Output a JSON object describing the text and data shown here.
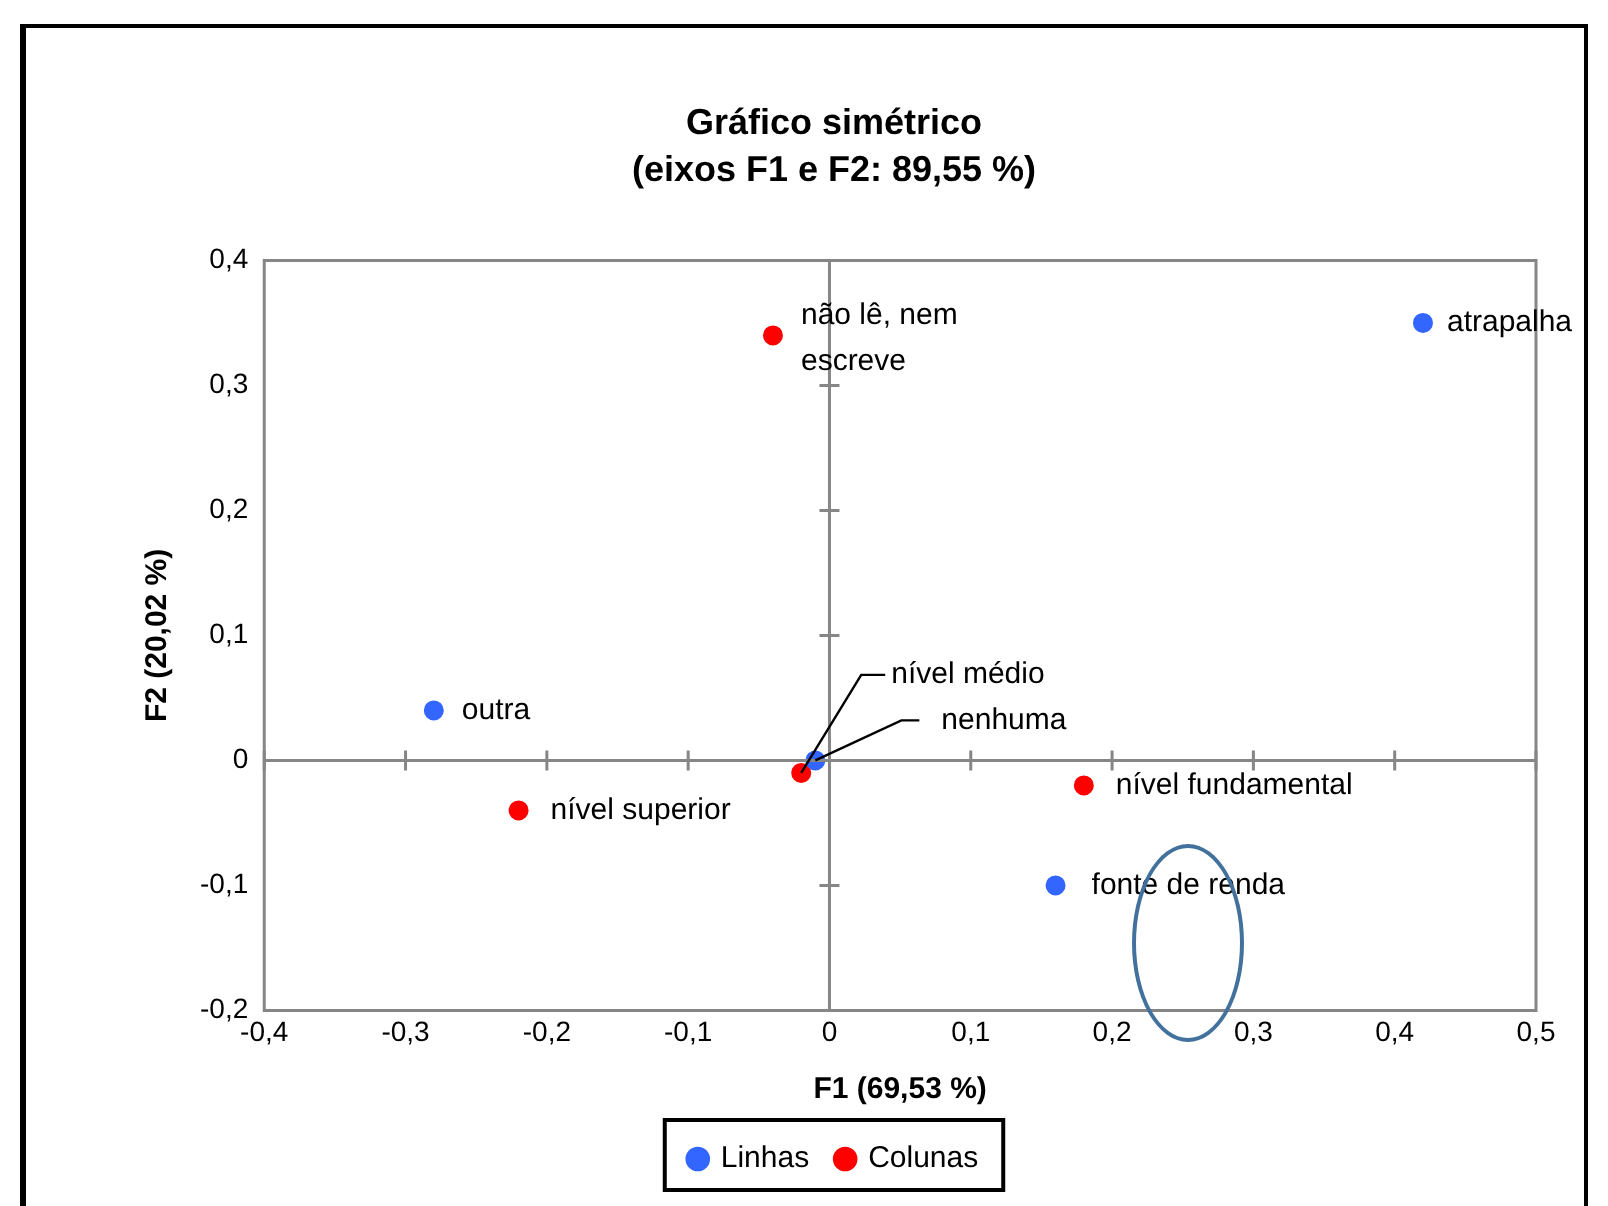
{
  "chart_data": {
    "type": "scatter",
    "title": "Gráfico simétrico",
    "subtitle": "(eixos F1 e F2: 89,55 %)",
    "xlabel": "F1 (69,53 %)",
    "ylabel": "F2 (20,02 %)",
    "xlim": [
      -0.4,
      0.5
    ],
    "xticks": [
      {
        "value": -0.4,
        "label": "-0,4"
      },
      {
        "value": -0.3,
        "label": "-0,3"
      },
      {
        "value": -0.2,
        "label": "-0,2"
      },
      {
        "value": -0.1,
        "label": "-0,1"
      },
      0,
      {
        "value": 0.1,
        "label": "0,1"
      },
      {
        "value": 0.2,
        "label": "0,2"
      },
      {
        "value": 0.3,
        "label": "0,3"
      },
      {
        "value": 0.4,
        "label": "0,4"
      },
      {
        "value": 0.5,
        "label": "0,5"
      }
    ],
    "ylim": [
      -0.2,
      0.4
    ],
    "yticks": [
      {
        "value": -0.2,
        "label": "-0,2"
      },
      {
        "value": -0.1,
        "label": "-0,1"
      },
      0,
      {
        "value": 0.1,
        "label": "0,1"
      },
      {
        "value": 0.2,
        "label": "0,2"
      },
      {
        "value": 0.3,
        "label": "0,3"
      },
      {
        "value": 0.4,
        "label": "0,4"
      }
    ],
    "series": [
      {
        "name": "Linhas",
        "color": "#3366ff",
        "x": [
          -0.28,
          -0.01,
          0.42,
          0.16
        ],
        "values": [
          0.04,
          0.0,
          0.35,
          -0.1
        ]
      },
      {
        "name": "Colunas",
        "color": "#ff0000",
        "x": [
          -0.04,
          -0.22,
          -0.02,
          0.18
        ],
        "values": [
          0.34,
          -0.04,
          -0.01,
          -0.02
        ]
      }
    ],
    "annotations": [
      {
        "text": "outra",
        "x": -0.28,
        "y": 0.04
      },
      {
        "text": "nenhuma",
        "x": -0.01,
        "y": 0.0
      },
      {
        "text": "atrapalha",
        "x": 0.42,
        "y": 0.35
      },
      {
        "text": "fonte de renda",
        "x": 0.16,
        "y": -0.1
      },
      {
        "text": "não lê, nem escreve",
        "x": -0.04,
        "y": 0.34
      },
      {
        "text": "nível superior",
        "x": -0.22,
        "y": -0.04
      },
      {
        "text": "nível médio",
        "x": -0.02,
        "y": -0.01
      },
      {
        "text": "nível fundamental",
        "x": 0.18,
        "y": -0.02
      }
    ],
    "legend": "bottom",
    "marker": "circle"
  }
}
